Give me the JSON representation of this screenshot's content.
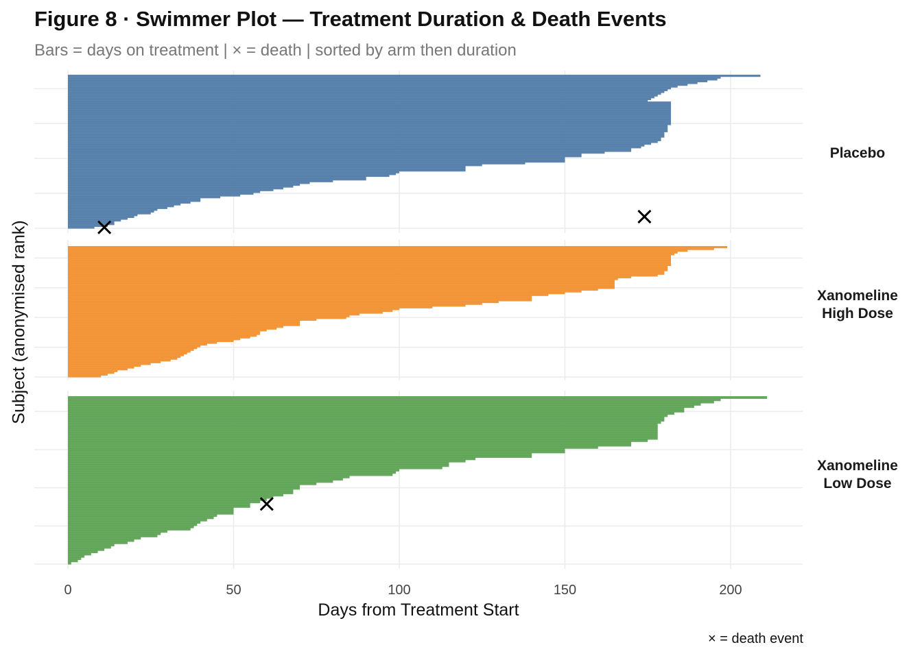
{
  "title": "Figure 8 · Swimmer Plot — Treatment Duration & Death Events",
  "subtitle": "Bars = days on treatment | × = death | sorted by arm then duration",
  "caption": "× = death event",
  "chart_data": {
    "type": "bar",
    "orientation": "horizontal",
    "title": "Figure 8 · Swimmer Plot — Treatment Duration & Death Events",
    "subtitle": "Bars = days on treatment | × = death | sorted by arm then duration",
    "xlabel": "Days from Treatment Start",
    "ylabel": "Subject (anonymised rank)",
    "xlim": [
      0,
      222
    ],
    "xticks": [
      0,
      50,
      100,
      150,
      200
    ],
    "xtick_labels": [
      "0",
      "50",
      "100",
      "150",
      "200"
    ],
    "grid": true,
    "legend": "none",
    "death_marker": "×",
    "facets": [
      {
        "name": "Placebo",
        "label_lines": [
          "Placebo"
        ],
        "color": "#4e79a7",
        "durations": [
          209,
          197,
          196,
          193,
          190,
          187,
          184,
          182,
          181,
          180,
          179,
          178,
          177,
          176,
          175,
          182,
          182,
          182,
          182,
          182,
          182,
          182,
          182,
          182,
          182,
          182,
          182,
          182,
          181,
          181,
          181,
          181,
          180,
          180,
          180,
          179,
          179,
          178,
          176,
          174,
          173,
          170,
          170,
          162,
          155,
          155,
          150,
          150,
          150,
          138,
          125,
          120,
          120,
          120,
          100,
          99,
          97,
          90,
          90,
          80,
          73,
          70,
          68,
          65,
          62,
          58,
          56,
          52,
          46,
          40,
          40,
          37,
          34,
          32,
          30,
          27,
          26,
          25,
          21,
          20,
          18,
          16,
          14,
          14,
          12,
          8
        ],
        "deaths": [
          {
            "rank_from_bottom": 6,
            "day": 174
          },
          {
            "rank_from_bottom": 0,
            "day": 11
          }
        ]
      },
      {
        "name": "Xanomeline High Dose",
        "label_lines": [
          "Xanomeline",
          "High Dose"
        ],
        "color": "#f28e2b",
        "durations": [
          199,
          195,
          187,
          184,
          183,
          182,
          182,
          182,
          182,
          182,
          182,
          181,
          181,
          181,
          180,
          180,
          178,
          170,
          166,
          165,
          165,
          165,
          165,
          165,
          160,
          155,
          150,
          145,
          140,
          140,
          140,
          130,
          125,
          120,
          110,
          100,
          98,
          95,
          88,
          85,
          84,
          75,
          70,
          70,
          70,
          65,
          63,
          60,
          58,
          58,
          57,
          55,
          52,
          50,
          45,
          42,
          40,
          39,
          38,
          37,
          36,
          35,
          34,
          33,
          31,
          28,
          25,
          22,
          20,
          18,
          15,
          14,
          12,
          10
        ],
        "deaths": []
      },
      {
        "name": "Xanomeline Low Dose",
        "label_lines": [
          "Xanomeline",
          "Low Dose"
        ],
        "color": "#59a14f",
        "durations": [
          211,
          197,
          195,
          191,
          189,
          186,
          186,
          183,
          181,
          180,
          180,
          179,
          178,
          178,
          178,
          178,
          178,
          178,
          178,
          175,
          170,
          170,
          160,
          150,
          150,
          140,
          140,
          123,
          120,
          115,
          115,
          113,
          100,
          99,
          98,
          85,
          83,
          80,
          75,
          70,
          70,
          68,
          68,
          65,
          62,
          60,
          58,
          55,
          55,
          50,
          50,
          50,
          45,
          44,
          42,
          40,
          39,
          38,
          37,
          30,
          28,
          27,
          22,
          20,
          18,
          14,
          13,
          11,
          9,
          7,
          5,
          4,
          3,
          1
        ],
        "deaths": [
          {
            "rank_from_bottom": 26,
            "day": 60
          }
        ]
      }
    ]
  }
}
